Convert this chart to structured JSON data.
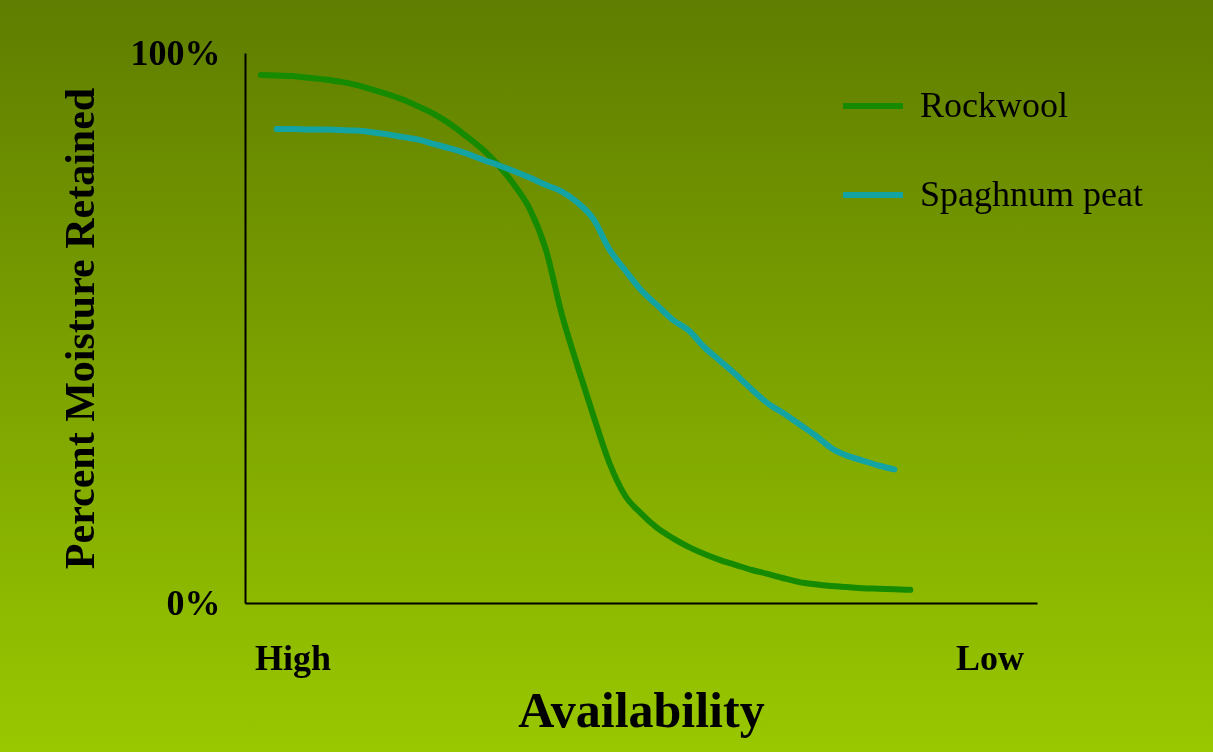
{
  "chart_data": {
    "type": "line",
    "xlabel": "Availability",
    "ylabel": "Percent Moisture Retained",
    "ylim": [
      0,
      100
    ],
    "categories": [
      null,
      null,
      null,
      "High",
      null,
      null,
      null,
      null,
      null,
      null,
      null,
      null,
      null,
      null,
      null,
      null,
      null,
      null,
      null,
      null,
      null,
      null,
      null,
      null,
      null,
      null,
      null,
      null,
      null,
      null,
      null,
      null,
      null,
      null,
      null,
      null,
      null,
      null,
      null,
      null,
      null,
      null,
      null,
      null,
      null,
      null,
      null,
      "Low",
      null,
      null,
      null
    ],
    "yticks": [
      {
        "value": 0,
        "label": "0%"
      },
      {
        "value": 100,
        "label": "100%"
      }
    ],
    "grid": false,
    "legend": "top right",
    "line_style": "solid",
    "series": [
      {
        "name": "Rockwool",
        "color": "#168a00",
        "values": [
          null,
          96,
          95.9,
          95.8,
          95.5,
          95.2,
          94.8,
          94.2,
          93.4,
          92.5,
          91.5,
          90.2,
          88.8,
          87,
          84.8,
          82.5,
          79.6,
          76,
          71.5,
          64.2,
          52.5,
          43,
          34,
          25.5,
          19.5,
          16.3,
          13.7,
          11.8,
          10.2,
          8.9,
          7.8,
          6.9,
          6,
          5.3,
          4.5,
          3.8,
          3.4,
          3.1,
          2.9,
          2.7,
          2.6,
          2.5,
          2.4,
          null,
          null,
          null,
          null,
          null,
          null,
          null,
          null
        ]
      },
      {
        "name": "Spaghnum peat",
        "color": "#14a3a3",
        "values": [
          null,
          null,
          86.2,
          86.2,
          86.1,
          86.1,
          86,
          85.9,
          85.6,
          85.2,
          84.7,
          84.2,
          83.4,
          82.6,
          81.7,
          80.6,
          79.6,
          78.5,
          77.3,
          76,
          74.8,
          72.8,
          69.8,
          64.3,
          60.5,
          56.9,
          54.2,
          51.5,
          49.6,
          46.5,
          44,
          41.5,
          38.8,
          36.3,
          34.5,
          32.5,
          30.5,
          28.2,
          26.8,
          25.9,
          25,
          24.3,
          null,
          null,
          null,
          null,
          null,
          null,
          null,
          null,
          null
        ]
      }
    ]
  }
}
